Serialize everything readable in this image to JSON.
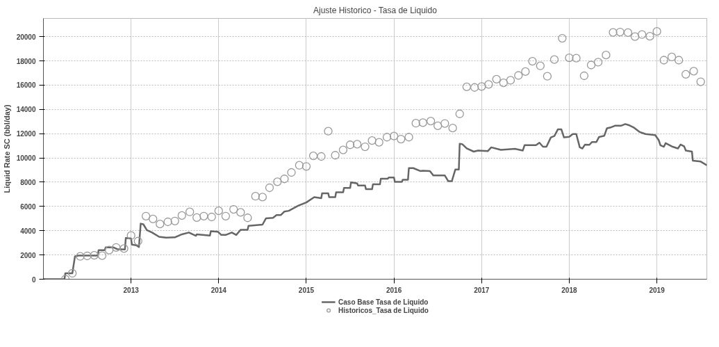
{
  "chart_data": {
    "type": "line",
    "title": "Ajuste Historico - Tasa de Liquido",
    "ylabel": "Liquid Rate SC (bbl/day)",
    "xlim": [
      2012.0,
      2019.57
    ],
    "xticks": [
      2013,
      2014,
      2015,
      2016,
      2017,
      2018,
      2019
    ],
    "ylim": [
      0,
      21500
    ],
    "yticks": [
      0,
      2000,
      4000,
      6000,
      8000,
      10000,
      12000,
      14000,
      16000,
      18000,
      20000
    ],
    "grid": true,
    "legend": "bottom",
    "series": [
      {
        "name": "Caso Base Tasa de Liquido",
        "color": "#666666",
        "line_style": "solid",
        "x": [
          2012.0,
          2012.24,
          2012.25,
          2012.33,
          2012.36,
          2012.4,
          2012.62,
          2012.63,
          2012.7,
          2012.71,
          2012.8,
          2012.84,
          2012.93,
          2012.94,
          2013.0,
          2013.01,
          2013.06,
          2013.09,
          2013.11,
          2013.14,
          2013.18,
          2013.24,
          2013.32,
          2013.4,
          2013.5,
          2013.58,
          2013.66,
          2013.74,
          2013.75,
          2013.9,
          2013.91,
          2013.99,
          2014.03,
          2014.08,
          2014.15,
          2014.2,
          2014.25,
          2014.33,
          2014.34,
          2014.5,
          2014.54,
          2014.62,
          2014.66,
          2014.71,
          2014.75,
          2014.8,
          2014.91,
          2015.0,
          2015.09,
          2015.17,
          2015.18,
          2015.25,
          2015.26,
          2015.33,
          2015.34,
          2015.42,
          2015.43,
          2015.5,
          2015.51,
          2015.58,
          2015.59,
          2015.67,
          2015.68,
          2015.75,
          2015.76,
          2015.84,
          2015.85,
          2015.93,
          2015.94,
          2016.0,
          2016.01,
          2016.09,
          2016.1,
          2016.16,
          2016.17,
          2016.22,
          2016.3,
          2016.33,
          2016.41,
          2016.45,
          2016.58,
          2016.62,
          2016.66,
          2016.7,
          2016.74,
          2016.75,
          2016.78,
          2016.83,
          2016.91,
          2016.96,
          2017.07,
          2017.11,
          2017.22,
          2017.38,
          2017.47,
          2017.49,
          2017.62,
          2017.66,
          2017.7,
          2017.74,
          2017.79,
          2017.83,
          2017.87,
          2017.91,
          2017.94,
          2018.0,
          2018.04,
          2018.08,
          2018.12,
          2018.15,
          2018.18,
          2018.23,
          2018.26,
          2018.31,
          2018.34,
          2018.4,
          2018.43,
          2018.48,
          2018.52,
          2018.59,
          2018.64,
          2018.68,
          2018.74,
          2018.8,
          2018.87,
          2018.98,
          2019.02,
          2019.04,
          2019.08,
          2019.1,
          2019.18,
          2019.24,
          2019.27,
          2019.31,
          2019.33,
          2019.4,
          2019.41,
          2019.5,
          2019.57
        ],
        "values": [
          0,
          0,
          490,
          490,
          1880,
          1950,
          1950,
          2400,
          2400,
          2620,
          2620,
          2480,
          2450,
          3400,
          3350,
          2850,
          2800,
          2650,
          4580,
          4530,
          4050,
          3850,
          3500,
          3420,
          3450,
          3700,
          3850,
          3580,
          3700,
          3600,
          3950,
          3920,
          3650,
          3650,
          3850,
          3650,
          4070,
          4070,
          4400,
          4500,
          5020,
          5060,
          5290,
          5290,
          5580,
          5640,
          6070,
          6330,
          6770,
          6680,
          7080,
          7080,
          6770,
          6770,
          7170,
          7170,
          7520,
          7520,
          7990,
          7900,
          7730,
          7730,
          7430,
          7430,
          7820,
          7820,
          8290,
          8290,
          8380,
          8380,
          8030,
          8030,
          8200,
          8200,
          9160,
          9160,
          8920,
          8950,
          8920,
          8550,
          8550,
          8080,
          8080,
          9040,
          9040,
          11170,
          11130,
          10780,
          10520,
          10610,
          10560,
          10870,
          10660,
          10750,
          10610,
          11050,
          11050,
          11250,
          10920,
          10920,
          11690,
          11800,
          12350,
          12350,
          11690,
          11740,
          11970,
          11970,
          10870,
          10780,
          11100,
          11080,
          11310,
          11310,
          11730,
          11830,
          12440,
          12530,
          12650,
          12650,
          12790,
          12700,
          12490,
          12150,
          11970,
          11880,
          11480,
          11050,
          10920,
          11220,
          10920,
          10780,
          11100,
          10960,
          10610,
          10520,
          9770,
          9700,
          9390
        ]
      },
      {
        "name": "Historicos_Tasa de Liquido",
        "type": "scatter",
        "color": "#999999",
        "marker": "circle",
        "x": [
          2012.25,
          2012.33,
          2012.42,
          2012.5,
          2012.58,
          2012.67,
          2012.75,
          2012.83,
          2012.92,
          2013.0,
          2013.08,
          2013.17,
          2013.25,
          2013.33,
          2013.42,
          2013.5,
          2013.58,
          2013.67,
          2013.75,
          2013.83,
          2013.92,
          2014.0,
          2014.08,
          2014.17,
          2014.25,
          2014.33,
          2014.42,
          2014.5,
          2014.58,
          2014.67,
          2014.75,
          2014.83,
          2014.92,
          2015.0,
          2015.08,
          2015.17,
          2015.25,
          2015.33,
          2015.42,
          2015.5,
          2015.58,
          2015.67,
          2015.75,
          2015.83,
          2015.92,
          2016.0,
          2016.08,
          2016.17,
          2016.25,
          2016.33,
          2016.42,
          2016.5,
          2016.58,
          2016.67,
          2016.75,
          2016.83,
          2016.92,
          2017.0,
          2017.08,
          2017.17,
          2017.25,
          2017.33,
          2017.42,
          2017.5,
          2017.58,
          2017.67,
          2017.75,
          2017.83,
          2017.92,
          2018.0,
          2018.08,
          2018.17,
          2018.25,
          2018.33,
          2018.42,
          2018.5,
          2018.58,
          2018.67,
          2018.75,
          2018.83,
          2018.92,
          2019.0,
          2019.08,
          2019.17,
          2019.25,
          2019.33,
          2019.42,
          2019.5
        ],
        "values": [
          0,
          490,
          1880,
          1920,
          1970,
          1940,
          2400,
          2620,
          2530,
          3600,
          3140,
          5200,
          4970,
          4550,
          4730,
          4800,
          5250,
          5550,
          5080,
          5200,
          5130,
          5640,
          5200,
          5760,
          5510,
          5060,
          6840,
          6770,
          7540,
          8030,
          8270,
          8800,
          9390,
          9300,
          10170,
          10120,
          12200,
          10220,
          10660,
          11080,
          11130,
          10920,
          11430,
          11290,
          11710,
          11800,
          11550,
          11710,
          12860,
          12910,
          13040,
          12650,
          12840,
          12460,
          13630,
          15860,
          15810,
          15890,
          16060,
          16490,
          16190,
          16400,
          16800,
          17120,
          17970,
          17590,
          16730,
          18110,
          19860,
          18250,
          18220,
          16770,
          17660,
          17890,
          18480,
          20350,
          20380,
          20330,
          20000,
          20170,
          20030,
          20430,
          18060,
          18320,
          18060,
          16890,
          17150,
          16280
        ]
      }
    ]
  }
}
